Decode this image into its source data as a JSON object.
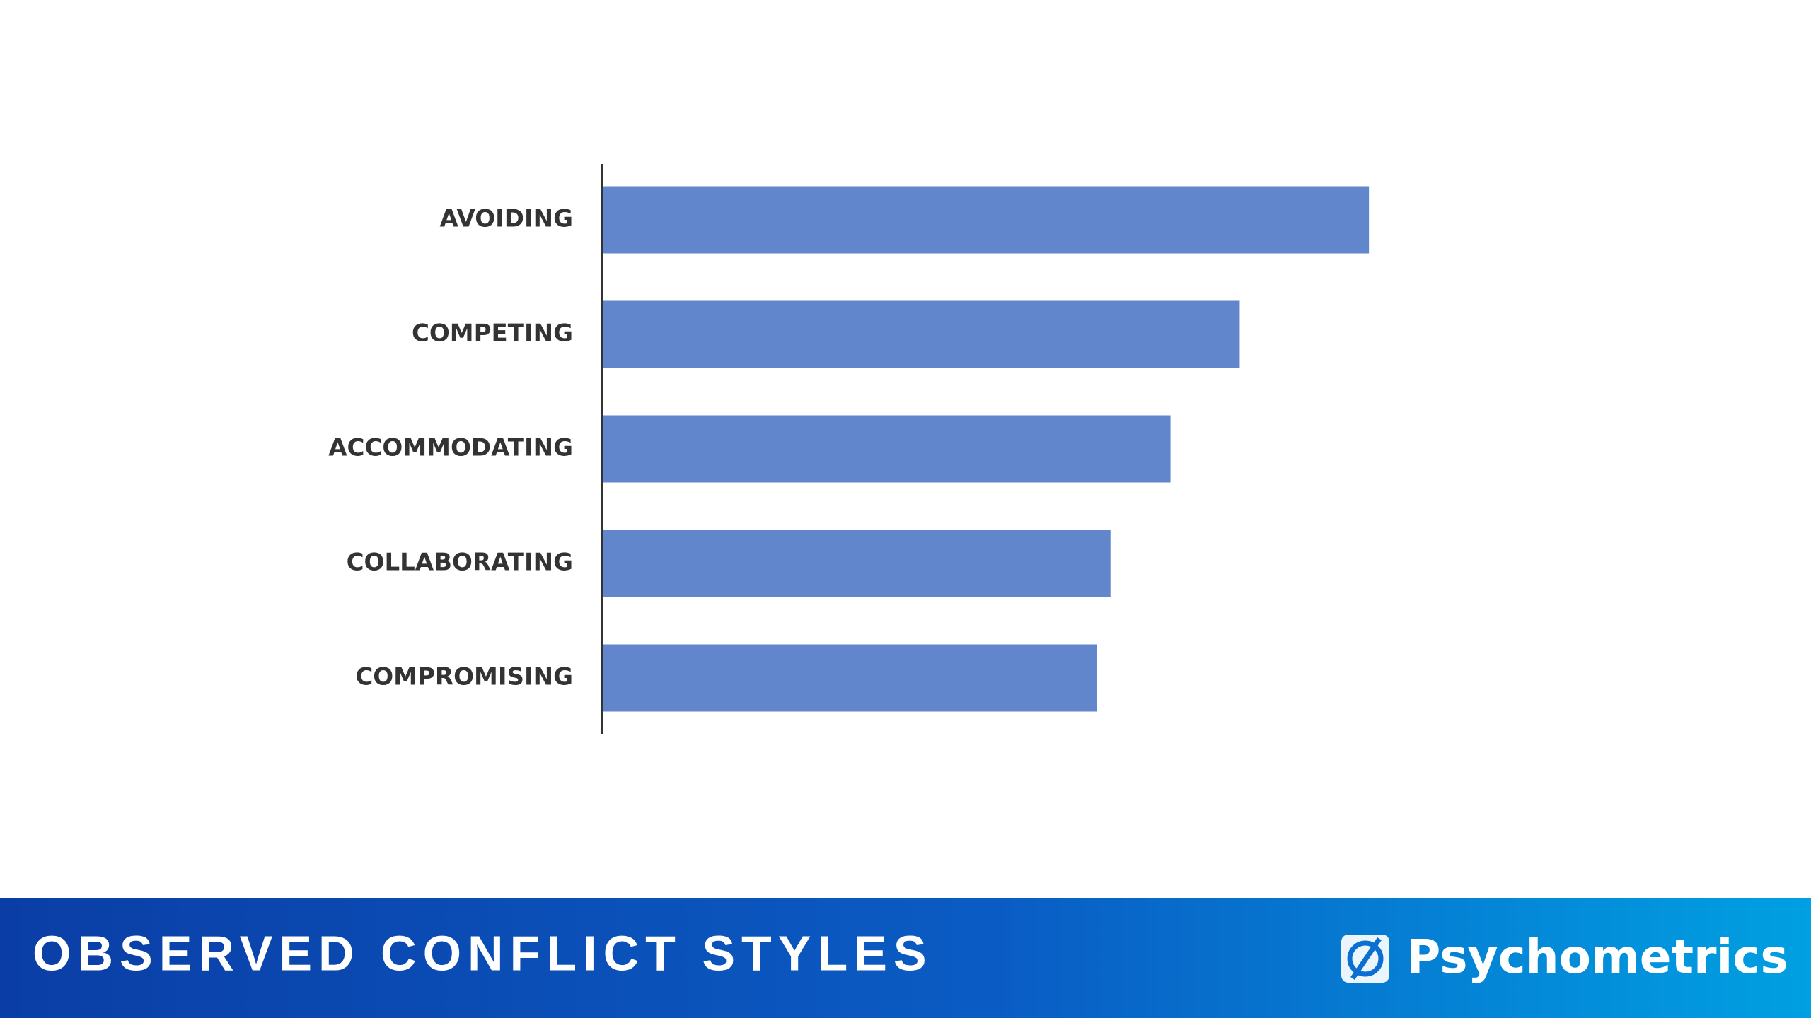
{
  "chart_data": {
    "type": "bar",
    "orientation": "horizontal",
    "title": "OBSERVED CONFLICT STYLES",
    "categories": [
      "AVOIDING",
      "COMPETING",
      "ACCOMMODATING",
      "COLLABORATING",
      "COMPROMISING"
    ],
    "values": [
      83,
      69,
      61.5,
      55,
      53.5
    ],
    "color": "#6186cb",
    "xlim": [
      0,
      100
    ]
  },
  "brand": "Psychometrics"
}
